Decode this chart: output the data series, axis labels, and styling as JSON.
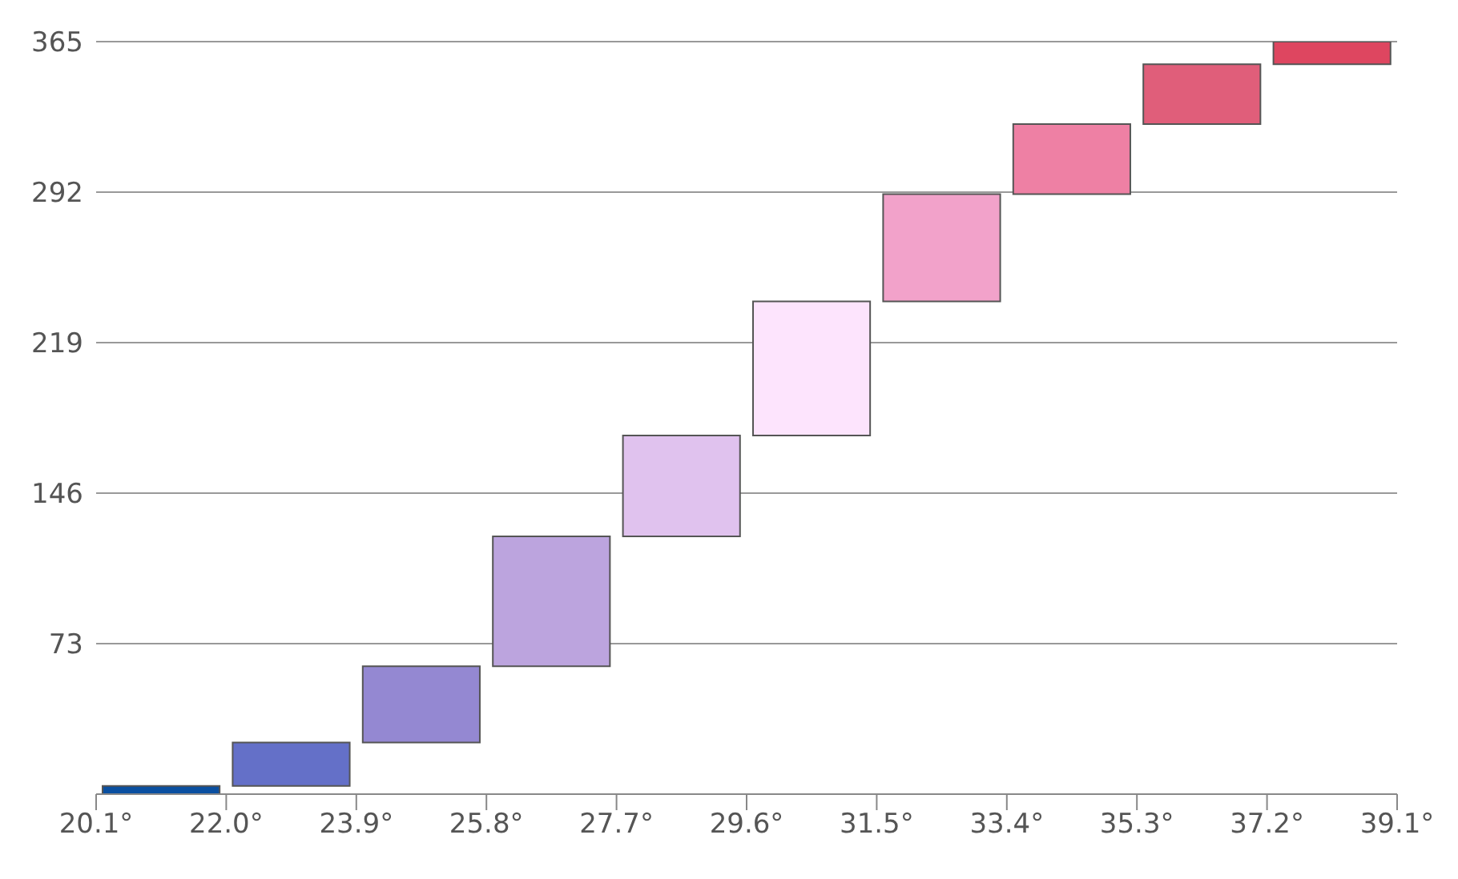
{
  "chart_data": {
    "type": "bar",
    "x": [
      21.05,
      22.95,
      24.85,
      26.75,
      28.65,
      30.55,
      32.45,
      34.35,
      36.25,
      38.15
    ],
    "values": [
      4,
      21,
      37,
      63,
      49,
      65,
      52,
      34,
      29,
      11
    ],
    "base": [
      0,
      4,
      25,
      62,
      125,
      174,
      239,
      291,
      325,
      354
    ],
    "colors": [
      "#0a4fa0",
      "#6470c8",
      "#9488d2",
      "#bca4de",
      "#e0c2ee",
      "#fde4fd",
      "#f2a2ca",
      "#ee80a4",
      "#e05e7a",
      "#de4660"
    ],
    "xlim": [
      20.1,
      39.1
    ],
    "xticks": [
      {
        "value": 20.1,
        "label": "20.1°"
      },
      {
        "value": 22.0,
        "label": "22.0°"
      },
      {
        "value": 23.9,
        "label": "23.9°"
      },
      {
        "value": 25.8,
        "label": "25.8°"
      },
      {
        "value": 27.7,
        "label": "27.7°"
      },
      {
        "value": 29.6,
        "label": "29.6°"
      },
      {
        "value": 31.5,
        "label": "31.5°"
      },
      {
        "value": 33.4,
        "label": "33.4°"
      },
      {
        "value": 35.3,
        "label": "35.3°"
      },
      {
        "value": 37.2,
        "label": "37.2°"
      },
      {
        "value": 39.1,
        "label": "39.1°"
      }
    ],
    "ylim": [
      0,
      365
    ],
    "yticks": [
      73,
      146,
      219,
      292,
      365
    ],
    "grid": "y"
  }
}
